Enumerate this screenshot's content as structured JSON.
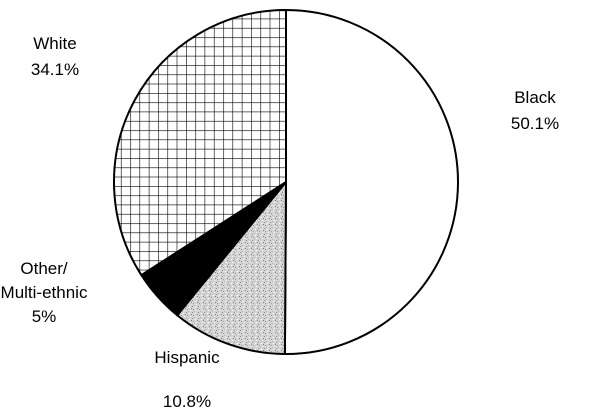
{
  "chart_data": {
    "type": "pie",
    "title": "",
    "start_angle_deg": 0,
    "direction": "clockwise",
    "slices": [
      {
        "name": "Black",
        "value": 50.1,
        "value_label": "50.1%",
        "fill": "white"
      },
      {
        "name": "Hispanic",
        "value": 10.8,
        "value_label": "10.8%",
        "fill": "stipple-gray"
      },
      {
        "name": "Other/ Multi-ethnic",
        "name_lines": [
          "Other/",
          "Multi-ethnic"
        ],
        "value": 5,
        "value_label": "5%",
        "fill": "black"
      },
      {
        "name": "White",
        "value": 34.1,
        "value_label": "34.1%",
        "fill": "crosshatch-grid"
      }
    ]
  }
}
